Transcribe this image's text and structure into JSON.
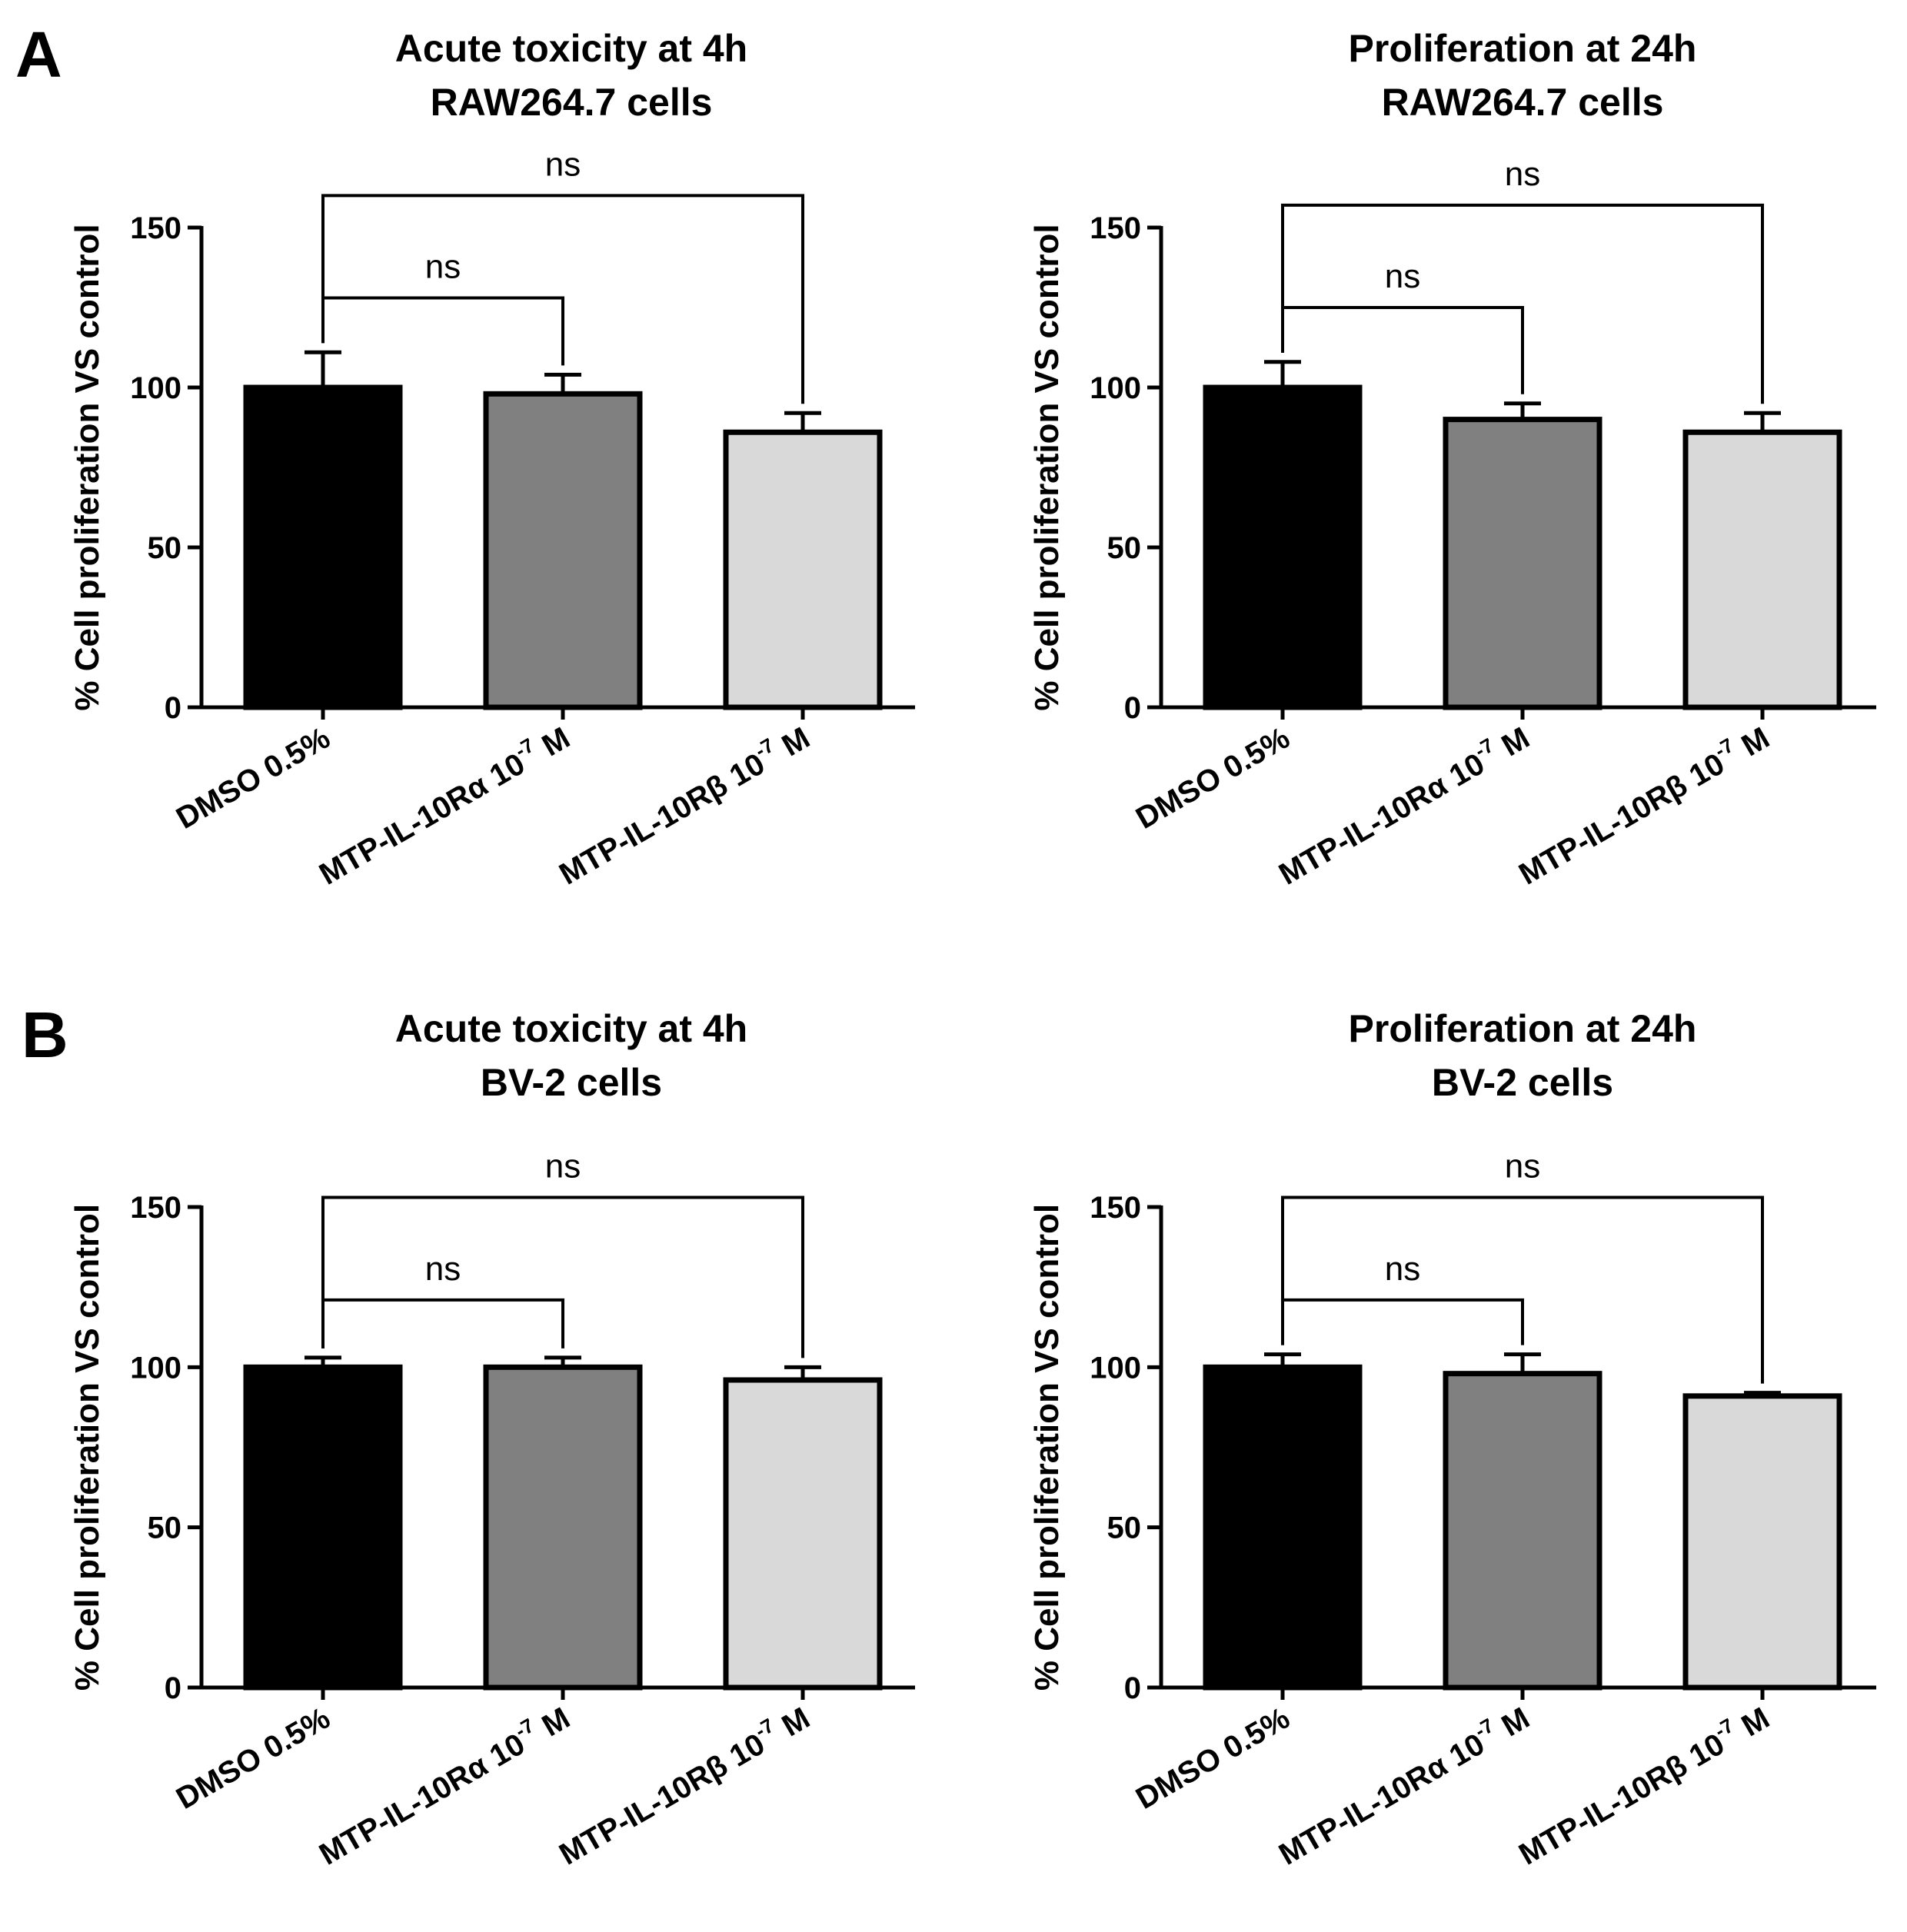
{
  "panels": [
    {
      "letter": "A"
    },
    {
      "letter": "B"
    }
  ],
  "chart_data": [
    {
      "type": "bar",
      "panel": "A",
      "title": [
        "Acute toxicity at 4h",
        "RAW264.7 cells"
      ],
      "ylabel": "% Cell proliferation VS control",
      "ylim": [
        0,
        150
      ],
      "yticks": [
        0,
        50,
        100,
        150
      ],
      "categories": [
        {
          "main": "DMSO 0.5%",
          "sup": "",
          "post": ""
        },
        {
          "main": "MTP-IL-10Rα 10",
          "sup": "-7",
          "post": " M"
        },
        {
          "main": "MTP-IL-10Rβ 10",
          "sup": "-7",
          "post": " M"
        }
      ],
      "values": [
        100,
        98,
        86
      ],
      "errors": [
        11,
        6,
        6
      ],
      "colors": [
        "#000000",
        "#808080",
        "#d9d9d9"
      ],
      "comparisons": [
        {
          "from": 0,
          "to": 1,
          "label": "ns",
          "y": 128
        },
        {
          "from": 0,
          "to": 2,
          "label": "ns",
          "y": 160
        }
      ]
    },
    {
      "type": "bar",
      "panel": "A",
      "title": [
        "Proliferation at 24h",
        "RAW264.7 cells"
      ],
      "ylabel": "% Cell proliferation VS control",
      "ylim": [
        0,
        150
      ],
      "yticks": [
        0,
        50,
        100,
        150
      ],
      "categories": [
        {
          "main": "DMSO 0.5%",
          "sup": "",
          "post": ""
        },
        {
          "main": "MTP-IL-10Rα 10",
          "sup": "-7",
          "post": " M"
        },
        {
          "main": "MTP-IL-10Rβ 10",
          "sup": "-7",
          "post": " M"
        }
      ],
      "values": [
        100,
        90,
        86
      ],
      "errors": [
        8,
        5,
        6
      ],
      "colors": [
        "#000000",
        "#808080",
        "#d9d9d9"
      ],
      "comparisons": [
        {
          "from": 0,
          "to": 1,
          "label": "ns",
          "y": 125
        },
        {
          "from": 0,
          "to": 2,
          "label": "ns",
          "y": 157
        }
      ]
    },
    {
      "type": "bar",
      "panel": "B",
      "title": [
        "Acute toxicity at 4h",
        "BV-2 cells"
      ],
      "ylabel": "% Cell proliferation VS control",
      "ylim": [
        0,
        150
      ],
      "yticks": [
        0,
        50,
        100,
        150
      ],
      "categories": [
        {
          "main": "DMSO 0.5%",
          "sup": "",
          "post": ""
        },
        {
          "main": "MTP-IL-10Rα 10",
          "sup": "-7",
          "post": " M"
        },
        {
          "main": "MTP-IL-10Rβ 10",
          "sup": "-7",
          "post": " M"
        }
      ],
      "values": [
        100,
        100,
        96
      ],
      "errors": [
        3,
        3,
        4
      ],
      "colors": [
        "#000000",
        "#808080",
        "#d9d9d9"
      ],
      "comparisons": [
        {
          "from": 0,
          "to": 1,
          "label": "ns",
          "y": 121
        },
        {
          "from": 0,
          "to": 2,
          "label": "ns",
          "y": 153
        }
      ]
    },
    {
      "type": "bar",
      "panel": "B",
      "title": [
        "Proliferation at 24h",
        "BV-2 cells"
      ],
      "ylabel": "% Cell proliferation VS control",
      "ylim": [
        0,
        150
      ],
      "yticks": [
        0,
        50,
        100,
        150
      ],
      "categories": [
        {
          "main": "DMSO 0.5%",
          "sup": "",
          "post": ""
        },
        {
          "main": "MTP-IL-10Rα 10",
          "sup": "-7",
          "post": " M"
        },
        {
          "main": "MTP-IL-10Rβ 10",
          "sup": "-7",
          "post": " M"
        }
      ],
      "values": [
        100,
        98,
        91
      ],
      "errors": [
        4,
        6,
        1
      ],
      "colors": [
        "#000000",
        "#808080",
        "#d9d9d9"
      ],
      "comparisons": [
        {
          "from": 0,
          "to": 1,
          "label": "ns",
          "y": 121
        },
        {
          "from": 0,
          "to": 2,
          "label": "ns",
          "y": 153
        }
      ]
    }
  ]
}
